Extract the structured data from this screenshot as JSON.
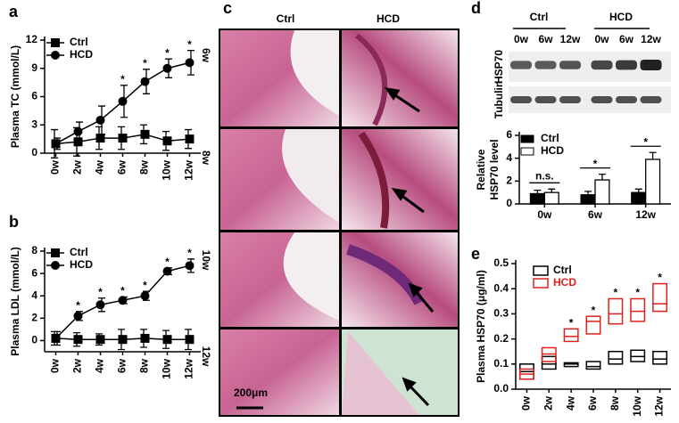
{
  "chart_data": [
    {
      "type": "line",
      "panel_label": "a",
      "y_label": "Plasma TC (mmol/L)",
      "categories": [
        "0w",
        "2w",
        "4w",
        "6w",
        "8w",
        "10w",
        "12w"
      ],
      "ylim": [
        0,
        12
      ],
      "yticks": [
        0,
        3,
        6,
        9,
        12
      ],
      "series": [
        {
          "name": "Ctrl",
          "marker": "square",
          "color": "#000000",
          "values": [
            1.0,
            1.2,
            1.6,
            1.6,
            2.0,
            1.3,
            1.5
          ],
          "errors": [
            1.5,
            1.5,
            1.2,
            1.2,
            1.0,
            1.0,
            1.0
          ]
        },
        {
          "name": "HCD",
          "marker": "circle",
          "color": "#000000",
          "values": [
            1.0,
            2.3,
            3.5,
            5.5,
            7.6,
            9.0,
            9.6
          ],
          "errors": [
            0.6,
            1.0,
            1.5,
            1.7,
            1.3,
            1.0,
            1.3
          ]
        }
      ],
      "significance": [
        null,
        null,
        null,
        "*",
        "*",
        "*",
        "*"
      ]
    },
    {
      "type": "line",
      "panel_label": "b",
      "y_label": "Plasma LDL (mmol/L)",
      "categories": [
        "0w",
        "2w",
        "4w",
        "6w",
        "8w",
        "10w",
        "12w"
      ],
      "ylim": [
        -1,
        8
      ],
      "yticks": [
        0,
        2,
        4,
        6,
        8
      ],
      "series": [
        {
          "name": "Ctrl",
          "marker": "square",
          "color": "#000000",
          "values": [
            0.2,
            0.1,
            0.1,
            0.1,
            0.2,
            0.1,
            0.1
          ],
          "errors": [
            0.6,
            0.6,
            0.5,
            0.9,
            0.8,
            0.8,
            0.9
          ]
        },
        {
          "name": "HCD",
          "marker": "circle",
          "color": "#000000",
          "values": [
            0.2,
            2.2,
            3.2,
            3.6,
            4.0,
            6.2,
            6.7
          ],
          "errors": [
            0.6,
            0.4,
            0.6,
            0.3,
            0.4,
            0.3,
            0.6
          ]
        }
      ],
      "significance": [
        null,
        "*",
        "*",
        "*",
        "*",
        "*",
        "*"
      ]
    },
    {
      "type": "bar",
      "y_label": [
        "Relative",
        "HSP70 level"
      ],
      "categories": [
        "0w",
        "6w",
        "12w"
      ],
      "ylim": [
        0,
        6
      ],
      "yticks": [
        0,
        2,
        4,
        6
      ],
      "series": [
        {
          "name": "Ctrl",
          "color": "#000000",
          "values": [
            0.9,
            0.8,
            1.0
          ],
          "errors": [
            0.3,
            0.3,
            0.3
          ]
        },
        {
          "name": "HCD",
          "color": "#ffffff",
          "values": [
            1.0,
            2.1,
            3.9
          ],
          "errors": [
            0.3,
            0.5,
            0.6
          ]
        }
      ],
      "significance": [
        "n.s.",
        "*",
        "*"
      ]
    },
    {
      "type": "box",
      "panel_label": "e",
      "y_label": "Plasma HSP70 (μg/ml)",
      "categories": [
        "0w",
        "2w",
        "4w",
        "6w",
        "8w",
        "10w",
        "12w"
      ],
      "ylim": [
        0,
        0.5
      ],
      "yticks": [
        {
          "value": 0,
          "label": "0.0"
        },
        0.1,
        0.2,
        0.3,
        0.4,
        0.5
      ],
      "series": [
        {
          "name": "Ctrl",
          "color": "#000000",
          "low": [
            0.04,
            0.08,
            0.09,
            0.08,
            0.1,
            0.11,
            0.1
          ],
          "median": [
            0.07,
            0.1,
            0.1,
            0.09,
            0.12,
            0.13,
            0.12
          ],
          "high": [
            0.1,
            0.13,
            0.105,
            0.11,
            0.15,
            0.155,
            0.15
          ]
        },
        {
          "name": "HCD",
          "color": "#e0201b",
          "low": [
            0.04,
            0.11,
            0.19,
            0.22,
            0.26,
            0.27,
            0.31
          ],
          "median": [
            0.06,
            0.14,
            0.21,
            0.27,
            0.3,
            0.31,
            0.34
          ],
          "high": [
            0.08,
            0.165,
            0.24,
            0.29,
            0.36,
            0.36,
            0.42
          ]
        }
      ],
      "significance": [
        null,
        null,
        "*",
        "*",
        "*",
        "*",
        "*"
      ]
    }
  ],
  "histology": {
    "panel_label": "c",
    "columns": [
      "Ctrl",
      "HCD"
    ],
    "rows": [
      "6w",
      "8w",
      "10w",
      "12w"
    ],
    "scale_bar": "200μm"
  },
  "blot": {
    "panel_label": "d",
    "groups": [
      "Ctrl",
      "HCD"
    ],
    "lanes": [
      "0w",
      "6w",
      "12w",
      "0w",
      "6w",
      "12w"
    ],
    "rows": [
      "HSP70",
      "Tubulin"
    ]
  }
}
